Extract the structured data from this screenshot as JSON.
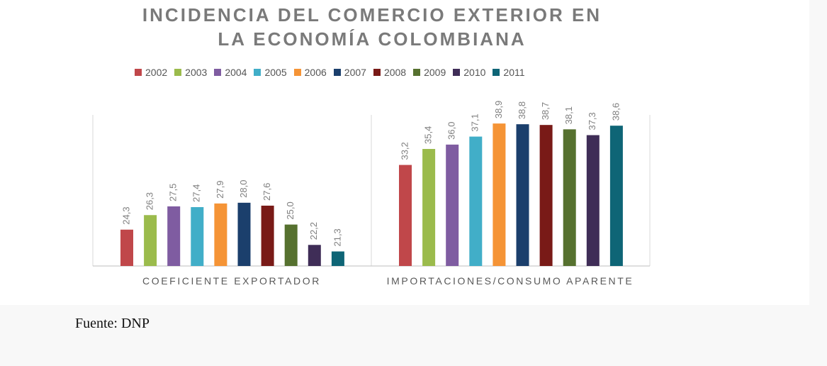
{
  "title_line1": "INCIDENCIA DEL COMERCIO EXTERIOR EN",
  "title_line2": "LA ECONOMÍA COLOMBIANA",
  "source": "Fuente: DNP",
  "chart_data": {
    "type": "bar",
    "categories": [
      "COEFICIENTE EXPORTADOR",
      "IMPORTACIONES/CONSUMO APARENTE"
    ],
    "series": [
      {
        "name": "2002",
        "color": "#c0474a",
        "values": [
          24.3,
          33.2
        ],
        "labels": [
          "24,3",
          "33,2"
        ]
      },
      {
        "name": "2003",
        "color": "#9bbb4c",
        "values": [
          26.3,
          35.4
        ],
        "labels": [
          "26,3",
          "35,4"
        ]
      },
      {
        "name": "2004",
        "color": "#7f5ca1",
        "values": [
          27.5,
          36.0
        ],
        "labels": [
          "27,5",
          "36,0"
        ]
      },
      {
        "name": "2005",
        "color": "#41aec8",
        "values": [
          27.4,
          37.1
        ],
        "labels": [
          "27,4",
          "37,1"
        ]
      },
      {
        "name": "2006",
        "color": "#f59436",
        "values": [
          27.9,
          38.9
        ],
        "labels": [
          "27,9",
          "38,9"
        ]
      },
      {
        "name": "2007",
        "color": "#1b3f6c",
        "values": [
          28.0,
          38.8
        ],
        "labels": [
          "28,0",
          "38,8"
        ]
      },
      {
        "name": "2008",
        "color": "#791a17",
        "values": [
          27.6,
          38.7
        ],
        "labels": [
          "27,6",
          "38,7"
        ]
      },
      {
        "name": "2009",
        "color": "#56712f",
        "values": [
          25.0,
          38.1
        ],
        "labels": [
          "25,0",
          "38,1"
        ]
      },
      {
        "name": "2010",
        "color": "#3f2d57",
        "values": [
          22.2,
          37.3
        ],
        "labels": [
          "22,2",
          "37,3"
        ]
      },
      {
        "name": "2011",
        "color": "#0e6576",
        "values": [
          21.3,
          38.6
        ],
        "labels": [
          "21,3",
          "38,6"
        ]
      }
    ],
    "ylim": [
      19.3,
      39.4
    ],
    "legend_position": "top",
    "grid": false
  }
}
